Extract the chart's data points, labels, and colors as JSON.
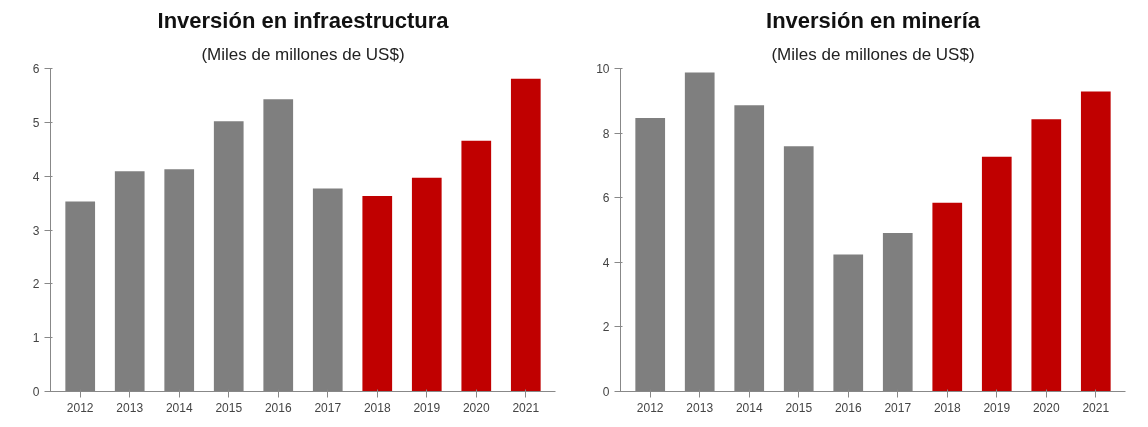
{
  "chart_data": [
    {
      "type": "bar",
      "title": "Inversión en infraestructura",
      "subtitle": "(Miles de millones de US$)",
      "categories": [
        "2012",
        "2013",
        "2014",
        "2015",
        "2016",
        "2017",
        "2018",
        "2019",
        "2020",
        "2021"
      ],
      "values": [
        3.53,
        4.09,
        4.13,
        5.02,
        5.43,
        3.77,
        3.63,
        3.97,
        4.66,
        5.81
      ],
      "colors": [
        "#7f7f7f",
        "#7f7f7f",
        "#7f7f7f",
        "#7f7f7f",
        "#7f7f7f",
        "#7f7f7f",
        "#c00000",
        "#c00000",
        "#c00000",
        "#c00000"
      ],
      "ylim": [
        0,
        6
      ],
      "yticks": [
        0,
        1,
        2,
        3,
        4,
        5,
        6
      ],
      "grid": false
    },
    {
      "type": "bar",
      "title": "Inversión en minería",
      "subtitle": "(Miles de millones de US$)",
      "categories": [
        "2012",
        "2013",
        "2014",
        "2015",
        "2016",
        "2017",
        "2018",
        "2019",
        "2020",
        "2021"
      ],
      "values": [
        8.47,
        9.88,
        8.86,
        7.59,
        4.24,
        4.91,
        5.84,
        7.27,
        8.43,
        9.29
      ],
      "colors": [
        "#7f7f7f",
        "#7f7f7f",
        "#7f7f7f",
        "#7f7f7f",
        "#7f7f7f",
        "#7f7f7f",
        "#c00000",
        "#c00000",
        "#c00000",
        "#c00000"
      ],
      "ylim": [
        0,
        10
      ],
      "yticks": [
        0,
        2,
        4,
        6,
        8,
        10
      ],
      "grid": false
    }
  ]
}
